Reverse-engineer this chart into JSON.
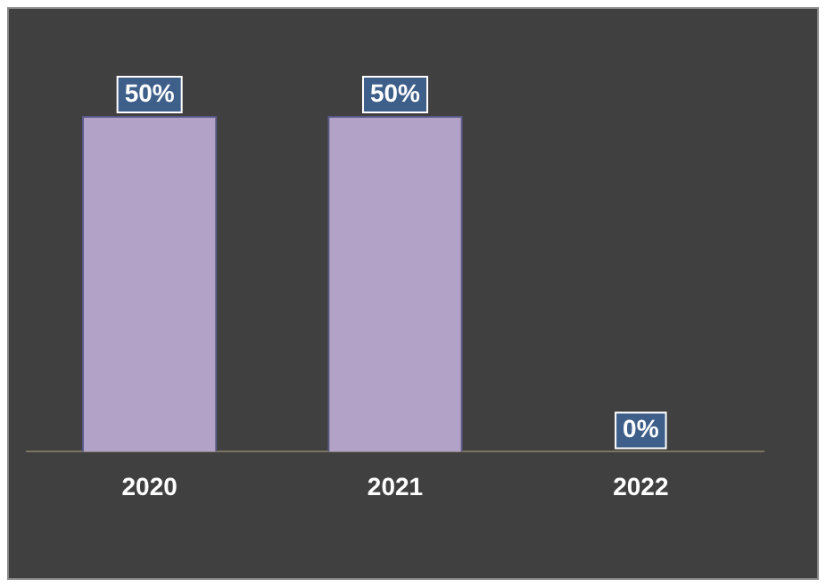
{
  "chart_data": {
    "type": "bar",
    "categories": [
      "2020",
      "2021",
      "2022"
    ],
    "values": [
      50,
      50,
      0
    ],
    "colors": [
      "#b3a2c7",
      "#b3a2c7",
      "#3e5f8a"
    ],
    "value_labels": [
      "50%",
      "50%",
      "0%"
    ],
    "grid": false,
    "legend": false
  }
}
